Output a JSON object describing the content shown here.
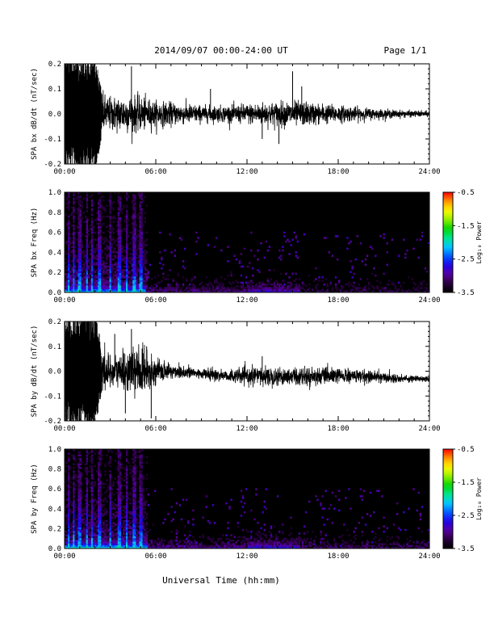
{
  "header": {
    "title": "2014/09/07  00:00-24:00 UT",
    "page": "Page 1/1"
  },
  "xlabel": "Universal Time (hh:mm)",
  "colorbar": {
    "label": "Log₁₀ Power",
    "ticks": [
      "-0.5",
      "-1.5",
      "-2.5",
      "-3.5"
    ]
  },
  "chart_data": [
    {
      "type": "line",
      "title": "",
      "ylabel": "SPA bx dB/dt (nT/sec)",
      "xlabel": "",
      "xlim": [
        0,
        24
      ],
      "xticks": [
        "00:00",
        "06:00",
        "12:00",
        "18:00",
        "24:00"
      ],
      "ylim": [
        -0.2,
        0.2
      ],
      "yticks": [
        "-0.2",
        "-0.1",
        "0.0",
        "0.1",
        "0.2"
      ],
      "envelope": {
        "hours": [
          0,
          1,
          2,
          2.5,
          3,
          4,
          5,
          6,
          7,
          8,
          9,
          10,
          11,
          12,
          13,
          14,
          15,
          16,
          17,
          18,
          19,
          20,
          21,
          22,
          23,
          24
        ],
        "amplitude": [
          0.2,
          0.2,
          0.2,
          0.07,
          0.06,
          0.065,
          0.06,
          0.045,
          0.04,
          0.035,
          0.03,
          0.028,
          0.03,
          0.035,
          0.04,
          0.042,
          0.045,
          0.04,
          0.035,
          0.03,
          0.025,
          0.02,
          0.016,
          0.013,
          0.011,
          0.01
        ],
        "offset": [
          0,
          0,
          0,
          0,
          0,
          0,
          0,
          0,
          0,
          0,
          0,
          0,
          0,
          0,
          0,
          0,
          0,
          0,
          0,
          0,
          0,
          0,
          0,
          0,
          0,
          0
        ]
      },
      "spikes": [
        {
          "hour": 4.4,
          "value": 0.19
        },
        {
          "hour": 9.6,
          "value": 0.1
        },
        {
          "hour": 13.0,
          "value": -0.1
        },
        {
          "hour": 14.1,
          "value": -0.12
        },
        {
          "hour": 15.0,
          "value": 0.17
        },
        {
          "hour": 15.6,
          "value": 0.11
        }
      ]
    },
    {
      "type": "heatmap",
      "title": "",
      "ylabel": "SPA bx Freq (Hz)",
      "xlabel": "",
      "xlim": [
        0,
        24
      ],
      "xticks": [
        "00:00",
        "06:00",
        "12:00",
        "18:00",
        "24:00"
      ],
      "ylim": [
        0,
        1.0
      ],
      "yticks": [
        "0.0",
        "0.2",
        "0.4",
        "0.6",
        "0.8",
        "1.0"
      ],
      "color_range": [
        -3.5,
        -0.5
      ],
      "bright_columns_hours": [
        0.3,
        0.6,
        1.0,
        1.5,
        1.8,
        2.3,
        3.0,
        3.6,
        4.1,
        4.6,
        5.0
      ],
      "low_freq_activity_hours": [
        {
          "start": 0,
          "end": 5.3,
          "power": -2.0
        },
        {
          "start": 5.3,
          "end": 12,
          "power": -3.0
        },
        {
          "start": 12,
          "end": 15.5,
          "power": -2.7
        },
        {
          "start": 15.5,
          "end": 24,
          "power": -3.2
        }
      ]
    },
    {
      "type": "line",
      "title": "",
      "ylabel": "SPA by dB/dt (nT/sec)",
      "xlabel": "",
      "xlim": [
        0,
        24
      ],
      "xticks": [
        "00:00",
        "06:00",
        "12:00",
        "18:00",
        "24:00"
      ],
      "ylim": [
        -0.2,
        0.2
      ],
      "yticks": [
        "-0.2",
        "-0.1",
        "0.0",
        "0.1",
        "0.2"
      ],
      "envelope": {
        "hours": [
          0,
          1,
          2,
          2.5,
          3,
          4,
          5,
          6,
          7,
          8,
          9,
          10,
          11,
          12,
          13,
          14,
          15,
          16,
          17,
          18,
          19,
          20,
          21,
          22,
          23,
          24
        ],
        "amplitude": [
          0.2,
          0.2,
          0.2,
          0.07,
          0.06,
          0.07,
          0.08,
          0.04,
          0.03,
          0.025,
          0.02,
          0.02,
          0.022,
          0.03,
          0.032,
          0.033,
          0.032,
          0.03,
          0.03,
          0.028,
          0.025,
          0.022,
          0.018,
          0.015,
          0.012,
          0.01
        ],
        "offset": [
          0,
          0,
          0,
          0,
          0,
          0,
          0,
          0,
          0,
          -0.005,
          -0.01,
          -0.015,
          -0.02,
          -0.02,
          -0.02,
          -0.02,
          -0.02,
          -0.02,
          -0.02,
          -0.02,
          -0.02,
          -0.02,
          -0.025,
          -0.03,
          -0.03,
          -0.03
        ]
      },
      "spikes": [
        {
          "hour": 3.3,
          "value": 0.15
        },
        {
          "hour": 4.4,
          "value": 0.17
        },
        {
          "hour": 5.4,
          "value": 0.1
        },
        {
          "hour": 4.0,
          "value": -0.17
        },
        {
          "hour": 5.7,
          "value": -0.19
        },
        {
          "hour": 13.0,
          "value": 0.06
        }
      ]
    },
    {
      "type": "heatmap",
      "title": "",
      "ylabel": "SPA by Freq (Hz)",
      "xlabel": "",
      "xlim": [
        0,
        24
      ],
      "xticks": [
        "00:00",
        "06:00",
        "12:00",
        "18:00",
        "24:00"
      ],
      "ylim": [
        0,
        1.0
      ],
      "yticks": [
        "0.0",
        "0.2",
        "0.4",
        "0.6",
        "0.8",
        "1.0"
      ],
      "color_range": [
        -3.5,
        -0.5
      ],
      "bright_columns_hours": [
        0.3,
        0.6,
        1.0,
        1.5,
        1.8,
        2.3,
        3.0,
        3.6,
        4.1,
        4.6,
        5.0
      ],
      "low_freq_activity_hours": [
        {
          "start": 0,
          "end": 5.5,
          "power": -1.9
        },
        {
          "start": 5.5,
          "end": 12,
          "power": -2.9
        },
        {
          "start": 12,
          "end": 15.5,
          "power": -2.6
        },
        {
          "start": 15.5,
          "end": 24,
          "power": -3.1
        }
      ]
    }
  ]
}
